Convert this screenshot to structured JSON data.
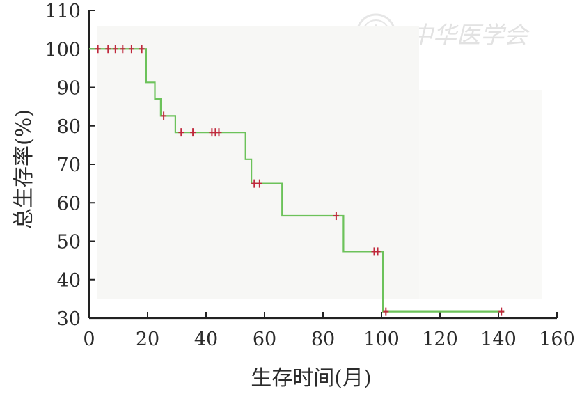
{
  "chart_data": {
    "type": "line",
    "subtype": "step-survival",
    "title": "",
    "xlabel": "生存时间(月)",
    "ylabel": "总生存率(%)",
    "xlim": [
      0,
      160
    ],
    "ylim": [
      30,
      110
    ],
    "xticks": [
      0,
      20,
      40,
      60,
      80,
      100,
      120,
      140,
      160
    ],
    "yticks": [
      30,
      40,
      50,
      60,
      70,
      80,
      90,
      100,
      110
    ],
    "grid": false,
    "series": [
      {
        "color": "#6cc25a",
        "steps": [
          [
            0,
            100
          ],
          [
            19.5,
            91.3
          ],
          [
            22.5,
            87
          ],
          [
            24.5,
            82.6
          ],
          [
            29.5,
            78.3
          ],
          [
            53.5,
            71.3
          ],
          [
            55.5,
            65
          ],
          [
            66,
            56.6
          ],
          [
            87,
            47.3
          ],
          [
            100.5,
            31.7
          ],
          [
            142,
            31.7
          ]
        ],
        "censored": [
          [
            3,
            100
          ],
          [
            6.5,
            100
          ],
          [
            9,
            100
          ],
          [
            11.5,
            100
          ],
          [
            14.5,
            100
          ],
          [
            18,
            100
          ],
          [
            25.5,
            82.6
          ],
          [
            31.5,
            78.3
          ],
          [
            35.5,
            78.3
          ],
          [
            42,
            78.3
          ],
          [
            43.2,
            78.3
          ],
          [
            44.4,
            78.3
          ],
          [
            56.5,
            65
          ],
          [
            58.3,
            65
          ],
          [
            84.5,
            56.6
          ],
          [
            97.5,
            47.3
          ],
          [
            98.7,
            47.3
          ],
          [
            101.5,
            31.7
          ],
          [
            141,
            31.7
          ]
        ],
        "censor_color": "#c0283c"
      }
    ]
  },
  "watermark": {
    "text": "中华医学会",
    "color": "#e2e2e2"
  }
}
